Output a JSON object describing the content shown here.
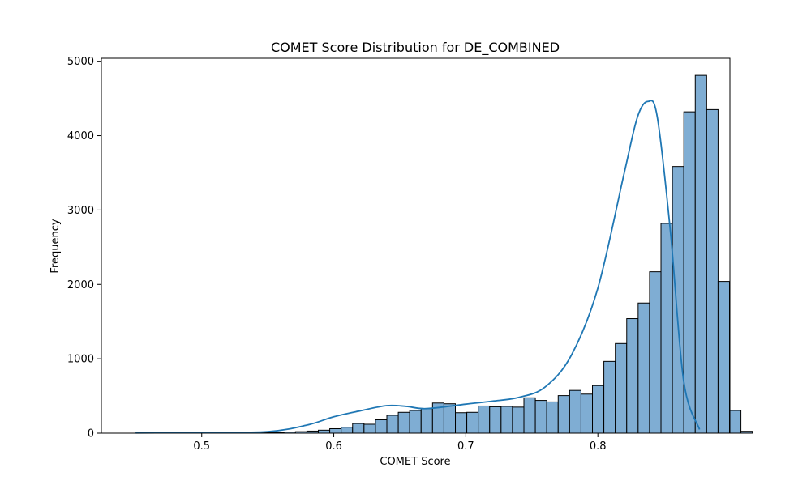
{
  "chart_data": {
    "type": "bar",
    "title": "COMET Score Distribution for DE_COMBINED",
    "xlabel": "COMET Score",
    "ylabel": "Frequency",
    "xlim": [
      0.424,
      0.9
    ],
    "ylim": [
      0,
      5040
    ],
    "xticks": [
      0.5,
      0.6,
      0.7,
      0.8
    ],
    "xtick_labels": [
      "0.5",
      "0.6",
      "0.7",
      "0.8"
    ],
    "yticks": [
      0,
      1000,
      2000,
      3000,
      4000,
      5000
    ],
    "ytick_labels": [
      "0",
      "1000",
      "2000",
      "3000",
      "4000",
      "5000"
    ],
    "grid": false,
    "bar_color": "#7fadd3",
    "bar_edge_color": "#000000",
    "kde_color": "#1f77b4",
    "bins": {
      "start": 0.4499,
      "width": 0.00865,
      "counts": [
        2,
        2,
        3,
        2,
        3,
        3,
        3,
        4,
        5,
        6,
        6,
        8,
        10,
        15,
        20,
        28,
        40,
        60,
        80,
        130,
        120,
        180,
        240,
        280,
        305,
        330,
        405,
        395,
        275,
        280,
        365,
        355,
        360,
        350,
        475,
        440,
        420,
        505,
        575,
        525,
        640,
        965,
        1205,
        1540,
        1750,
        2170,
        2820,
        3585,
        4320,
        4810,
        4350,
        2040,
        305,
        25
      ]
    },
    "kde": {
      "x": [
        0.45,
        0.5,
        0.55,
        0.58,
        0.6,
        0.62,
        0.64,
        0.655,
        0.67,
        0.7,
        0.72,
        0.74,
        0.76,
        0.78,
        0.8,
        0.82,
        0.83,
        0.838,
        0.845,
        0.855,
        0.865,
        0.877
      ],
      "y": [
        3,
        8,
        20,
        110,
        220,
        300,
        370,
        360,
        330,
        390,
        430,
        480,
        620,
        1050,
        1950,
        3500,
        4250,
        4460,
        4250,
        2700,
        700,
        50
      ]
    }
  }
}
